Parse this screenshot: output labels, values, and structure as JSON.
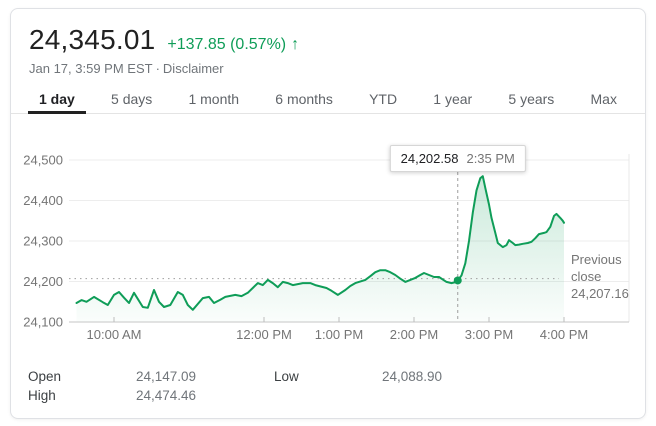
{
  "header": {
    "price": "24,345.01",
    "change": "+137.85 (0.57%)",
    "arrow_icon": "↑",
    "timestamp": "Jan 17, 3:59 PM EST",
    "separator": "·",
    "disclaimer_label": "Disclaimer"
  },
  "tabs": {
    "items": [
      {
        "label": "1 day",
        "active": true
      },
      {
        "label": "5 days",
        "active": false
      },
      {
        "label": "1 month",
        "active": false
      },
      {
        "label": "6 months",
        "active": false
      },
      {
        "label": "YTD",
        "active": false
      },
      {
        "label": "1 year",
        "active": false
      },
      {
        "label": "5 years",
        "active": false
      },
      {
        "label": "Max",
        "active": false
      }
    ]
  },
  "tooltip": {
    "value": "24,202.58",
    "time": "2:35 PM"
  },
  "previous_close": {
    "label": "Previous close",
    "value": "24,207.16"
  },
  "stats": {
    "rows": [
      {
        "label": "Open",
        "value": "24,147.09"
      },
      {
        "label": "High",
        "value": "24,474.46"
      },
      {
        "label": "Low",
        "value": "24,088.90"
      }
    ]
  },
  "colors": {
    "line_green": "#0f9d58",
    "change_green": "#0f9d58",
    "price_text": "#212121",
    "muted_text": "#757575",
    "gridline": "#ededed",
    "axis_line": "#c6c6c6"
  },
  "chart_data": {
    "type": "line",
    "title": "",
    "xlabel": "",
    "ylabel": "",
    "ylim": [
      24100,
      24500
    ],
    "grid": true,
    "y_ticks": [
      {
        "v": 24100,
        "label": "24,100"
      },
      {
        "v": 24200,
        "label": "24,200"
      },
      {
        "v": 24300,
        "label": "24,300"
      },
      {
        "v": 24400,
        "label": "24,400"
      },
      {
        "v": 24500,
        "label": "24,500"
      }
    ],
    "x_ticks": [
      {
        "t": 600,
        "label": "10:00 AM"
      },
      {
        "t": 720,
        "label": "12:00 PM"
      },
      {
        "t": 780,
        "label": "1:00 PM"
      },
      {
        "t": 840,
        "label": "2:00 PM"
      },
      {
        "t": 900,
        "label": "3:00 PM"
      },
      {
        "t": 960,
        "label": "4:00 PM"
      }
    ],
    "previous_close_value": 24207.16,
    "marker": {
      "t": 875,
      "v": 24202.58,
      "time_label": "2:35 PM"
    },
    "points": [
      [
        570,
        24147
      ],
      [
        574,
        24154
      ],
      [
        578,
        24150
      ],
      [
        584,
        24162
      ],
      [
        591,
        24149
      ],
      [
        595,
        24142
      ],
      [
        600,
        24167
      ],
      [
        604,
        24174
      ],
      [
        608,
        24160
      ],
      [
        612,
        24147
      ],
      [
        616,
        24172
      ],
      [
        623,
        24137
      ],
      [
        627,
        24135
      ],
      [
        632,
        24179
      ],
      [
        636,
        24150
      ],
      [
        640,
        24137
      ],
      [
        645,
        24142
      ],
      [
        651,
        24174
      ],
      [
        655,
        24167
      ],
      [
        659,
        24142
      ],
      [
        663,
        24130
      ],
      [
        671,
        24159
      ],
      [
        676,
        24162
      ],
      [
        680,
        24147
      ],
      [
        685,
        24155
      ],
      [
        689,
        24162
      ],
      [
        697,
        24167
      ],
      [
        702,
        24164
      ],
      [
        707,
        24172
      ],
      [
        715,
        24196
      ],
      [
        719,
        24191
      ],
      [
        723,
        24204
      ],
      [
        727,
        24196
      ],
      [
        731,
        24186
      ],
      [
        735,
        24199
      ],
      [
        739,
        24196
      ],
      [
        743,
        24191
      ],
      [
        751,
        24196
      ],
      [
        757,
        24196
      ],
      [
        761,
        24191
      ],
      [
        770,
        24184
      ],
      [
        774,
        24177
      ],
      [
        779,
        24167
      ],
      [
        785,
        24179
      ],
      [
        789,
        24189
      ],
      [
        793,
        24196
      ],
      [
        801,
        24204
      ],
      [
        805,
        24213
      ],
      [
        809,
        24223
      ],
      [
        813,
        24228
      ],
      [
        817,
        24228
      ],
      [
        821,
        24223
      ],
      [
        825,
        24216
      ],
      [
        829,
        24207
      ],
      [
        833,
        24199
      ],
      [
        837,
        24204
      ],
      [
        841,
        24209
      ],
      [
        845,
        24216
      ],
      [
        848,
        24221
      ],
      [
        852,
        24216
      ],
      [
        856,
        24211
      ],
      [
        860,
        24211
      ],
      [
        866,
        24199
      ],
      [
        870,
        24196
      ],
      [
        874,
        24199
      ],
      [
        875,
        24202.58
      ],
      [
        878,
        24215
      ],
      [
        881,
        24245
      ],
      [
        884,
        24300
      ],
      [
        887,
        24370
      ],
      [
        890,
        24425
      ],
      [
        893,
        24455
      ],
      [
        895,
        24460
      ],
      [
        897,
        24431
      ],
      [
        900,
        24390
      ],
      [
        902,
        24357
      ],
      [
        905,
        24320
      ],
      [
        907,
        24295
      ],
      [
        911,
        24285
      ],
      [
        914,
        24290
      ],
      [
        916,
        24302
      ],
      [
        919,
        24295
      ],
      [
        921,
        24290
      ],
      [
        924,
        24291
      ],
      [
        927,
        24293
      ],
      [
        931,
        24295
      ],
      [
        934,
        24298
      ],
      [
        937,
        24307
      ],
      [
        940,
        24317
      ],
      [
        944,
        24320
      ],
      [
        946,
        24322
      ],
      [
        949,
        24335
      ],
      [
        952,
        24362
      ],
      [
        954,
        24367
      ],
      [
        957,
        24357
      ],
      [
        959,
        24350
      ],
      [
        960,
        24345
      ]
    ]
  }
}
